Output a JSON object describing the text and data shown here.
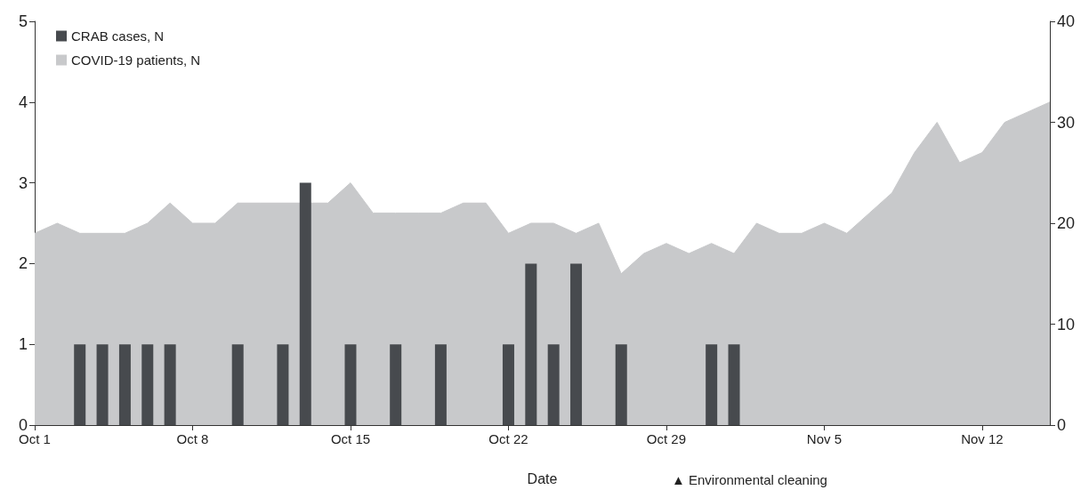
{
  "chart_data": {
    "type": "bar",
    "xlabel": "Date",
    "annotations": [
      "▲ Environmental cleaning"
    ],
    "xlim": [
      "--10-01",
      "--11-15"
    ],
    "xticks": [
      {
        "value": "--10-01",
        "label": "Oct 1"
      },
      {
        "value": "--10-08",
        "label": "Oct 8"
      },
      {
        "value": "--10-15",
        "label": "Oct 15"
      },
      {
        "value": "--10-22",
        "label": "Oct 22"
      },
      {
        "value": "--10-29",
        "label": "Oct 29"
      },
      {
        "value": "--11-05",
        "label": "Nov 5"
      },
      {
        "value": "--11-12",
        "label": "Nov 12"
      }
    ],
    "ylim": [
      0,
      5
    ],
    "yticks": [
      0,
      1,
      2,
      3,
      4,
      5
    ],
    "y2lim": [
      0,
      40
    ],
    "y2ticks": [
      0,
      10,
      20,
      30,
      40
    ],
    "grid": false,
    "legend": "top left",
    "series": [
      {
        "name": "CRAB cases, N",
        "color": "#474a4e",
        "x": [
          "--10-03",
          "--10-04",
          "--10-05",
          "--10-06",
          "--10-07",
          "--10-10",
          "--10-12",
          "--10-13",
          "--10-15",
          "--10-17",
          "--10-19",
          "--10-22",
          "--10-23",
          "--10-24",
          "--10-25",
          "--10-27",
          "--10-31",
          "--11-01"
        ],
        "values": [
          1,
          1,
          1,
          1,
          1,
          1,
          1,
          3,
          1,
          1,
          1,
          1,
          2,
          1,
          2,
          1,
          1,
          1
        ]
      },
      {
        "name": "COVID-19 patients, N",
        "type": "area",
        "axis": "y2",
        "color": "#c8c9cb",
        "x": [
          "--10-01",
          "--10-02",
          "--10-03",
          "--10-04",
          "--10-05",
          "--10-06",
          "--10-07",
          "--10-08",
          "--10-09",
          "--10-10",
          "--10-11",
          "--10-12",
          "--10-13",
          "--10-14",
          "--10-15",
          "--10-16",
          "--10-17",
          "--10-18",
          "--10-19",
          "--10-20",
          "--10-21",
          "--10-22",
          "--10-23",
          "--10-24",
          "--10-25",
          "--10-26",
          "--10-27",
          "--10-28",
          "--10-29",
          "--10-30",
          "--10-31",
          "--11-01",
          "--11-02",
          "--11-03",
          "--11-04",
          "--11-05",
          "--11-06",
          "--11-07",
          "--11-08",
          "--11-09",
          "--11-10",
          "--11-11",
          "--11-12",
          "--11-13",
          "--11-14",
          "--11-15"
        ],
        "values": [
          19,
          20,
          19,
          19,
          19,
          20,
          22,
          20,
          20,
          22,
          22,
          22,
          22,
          22,
          24,
          21,
          21,
          21,
          21,
          22,
          22,
          19,
          20,
          20,
          19,
          20,
          15,
          17,
          18,
          17,
          18,
          17,
          20,
          19,
          19,
          20,
          19,
          21,
          23,
          27,
          30,
          26,
          27,
          30,
          31,
          32
        ]
      }
    ]
  }
}
